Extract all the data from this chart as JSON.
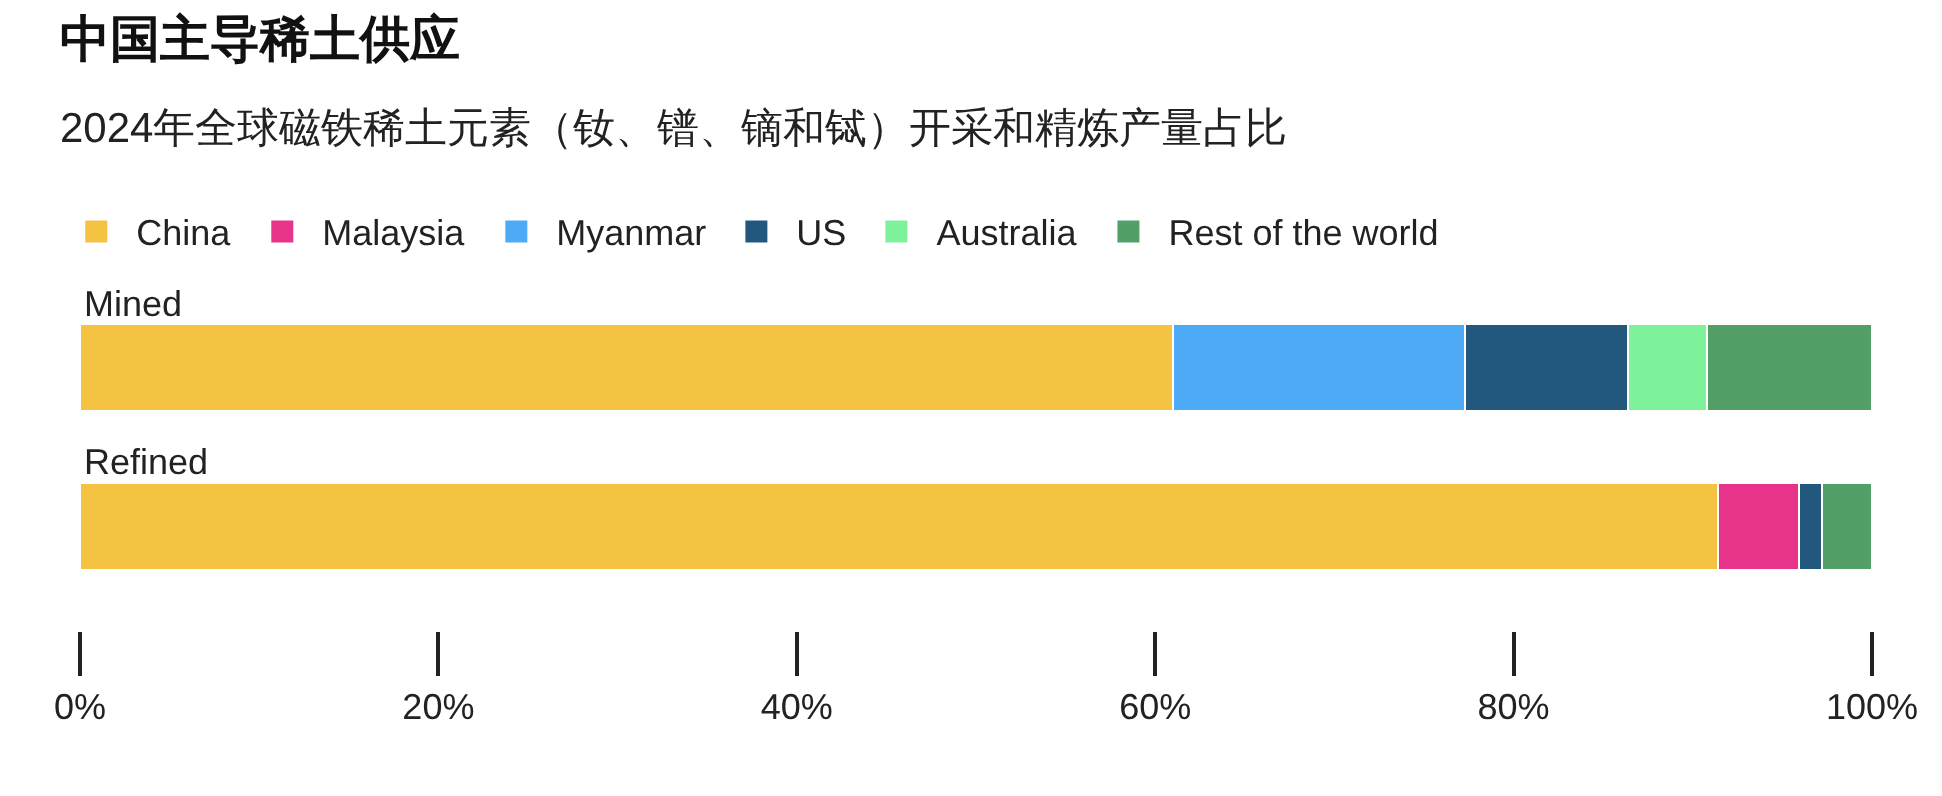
{
  "chart_data": {
    "type": "bar",
    "orientation": "horizontal",
    "stacked": true,
    "title": "中国主导稀土供应",
    "subtitle": "2024年全球磁铁稀土元素（钕、镨、镝和铽）开采和精炼产量占比",
    "categories": [
      "Mined",
      "Refined"
    ],
    "series": [
      {
        "name": "China",
        "color": "#f5c342",
        "values": [
          61.0,
          91.4
        ]
      },
      {
        "name": "Malaysia",
        "color": "#e8338a",
        "values": [
          null,
          4.5
        ]
      },
      {
        "name": "Myanmar",
        "color": "#4faaf5",
        "values": [
          16.3,
          null
        ]
      },
      {
        "name": "US",
        "color": "#22577e",
        "values": [
          9.1,
          1.3
        ]
      },
      {
        "name": "Australia",
        "color": "#7ef29a",
        "values": [
          4.4,
          null
        ]
      },
      {
        "name": "Rest of the world",
        "color": "#52a068",
        "values": [
          9.2,
          2.8
        ]
      }
    ],
    "xlim": [
      0,
      100
    ],
    "xticks": [
      {
        "value": 0,
        "label": "0%"
      },
      {
        "value": 20,
        "label": "20%"
      },
      {
        "value": 40,
        "label": "40%"
      },
      {
        "value": 60,
        "label": "60%"
      },
      {
        "value": 80,
        "label": "80%"
      },
      {
        "value": 100,
        "label": "100%"
      }
    ],
    "legend": "top"
  }
}
